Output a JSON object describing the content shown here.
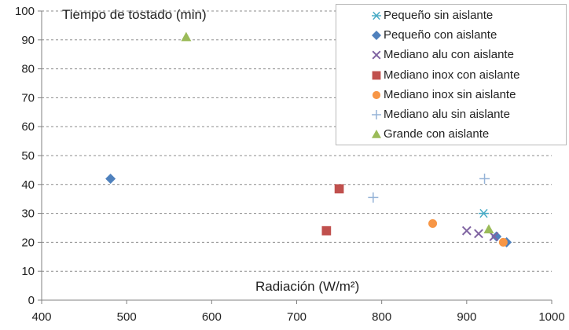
{
  "chart_data": {
    "type": "scatter",
    "title": "",
    "xlabel": "Radiación (W/m²)",
    "ylabel": "Tiempo de tostado (min)",
    "xlim": [
      400,
      1000
    ],
    "ylim": [
      0,
      100
    ],
    "xticks": [
      400,
      500,
      600,
      700,
      800,
      900,
      1000
    ],
    "yticks": [
      0,
      10,
      20,
      30,
      40,
      50,
      60,
      70,
      80,
      90,
      100
    ],
    "grid": "horizontal-dashed",
    "legend_position": "top-right",
    "series": [
      {
        "name": "Pequeño sin aislante",
        "marker": "asterisk",
        "color": "#4bacc6",
        "points": [
          {
            "x": 920,
            "y": 30
          }
        ]
      },
      {
        "name": "Pequeño con aislante",
        "marker": "diamond",
        "color": "#4f81bd",
        "points": [
          {
            "x": 481,
            "y": 42
          },
          {
            "x": 935,
            "y": 22
          },
          {
            "x": 947,
            "y": 20
          }
        ]
      },
      {
        "name": "Mediano alu con aislante",
        "marker": "x",
        "color": "#8064a2",
        "points": [
          {
            "x": 900,
            "y": 24
          },
          {
            "x": 914,
            "y": 23
          },
          {
            "x": 932,
            "y": 22
          }
        ]
      },
      {
        "name": "Mediano inox con aislante",
        "marker": "square",
        "color": "#c0504d",
        "points": [
          {
            "x": 735,
            "y": 24
          },
          {
            "x": 750,
            "y": 38.5
          }
        ]
      },
      {
        "name": "Mediano inox sin aislante",
        "marker": "circle",
        "color": "#f79646",
        "points": [
          {
            "x": 860,
            "y": 26.5
          },
          {
            "x": 943,
            "y": 20
          }
        ]
      },
      {
        "name": "Mediano alu sin aislante",
        "marker": "plus",
        "color": "#95b3d7",
        "points": [
          {
            "x": 790,
            "y": 35.5
          },
          {
            "x": 921,
            "y": 42
          }
        ]
      },
      {
        "name": "Grande con aislante",
        "marker": "triangle",
        "color": "#9bbb59",
        "points": [
          {
            "x": 570,
            "y": 91
          },
          {
            "x": 926,
            "y": 24.5
          }
        ]
      }
    ]
  }
}
